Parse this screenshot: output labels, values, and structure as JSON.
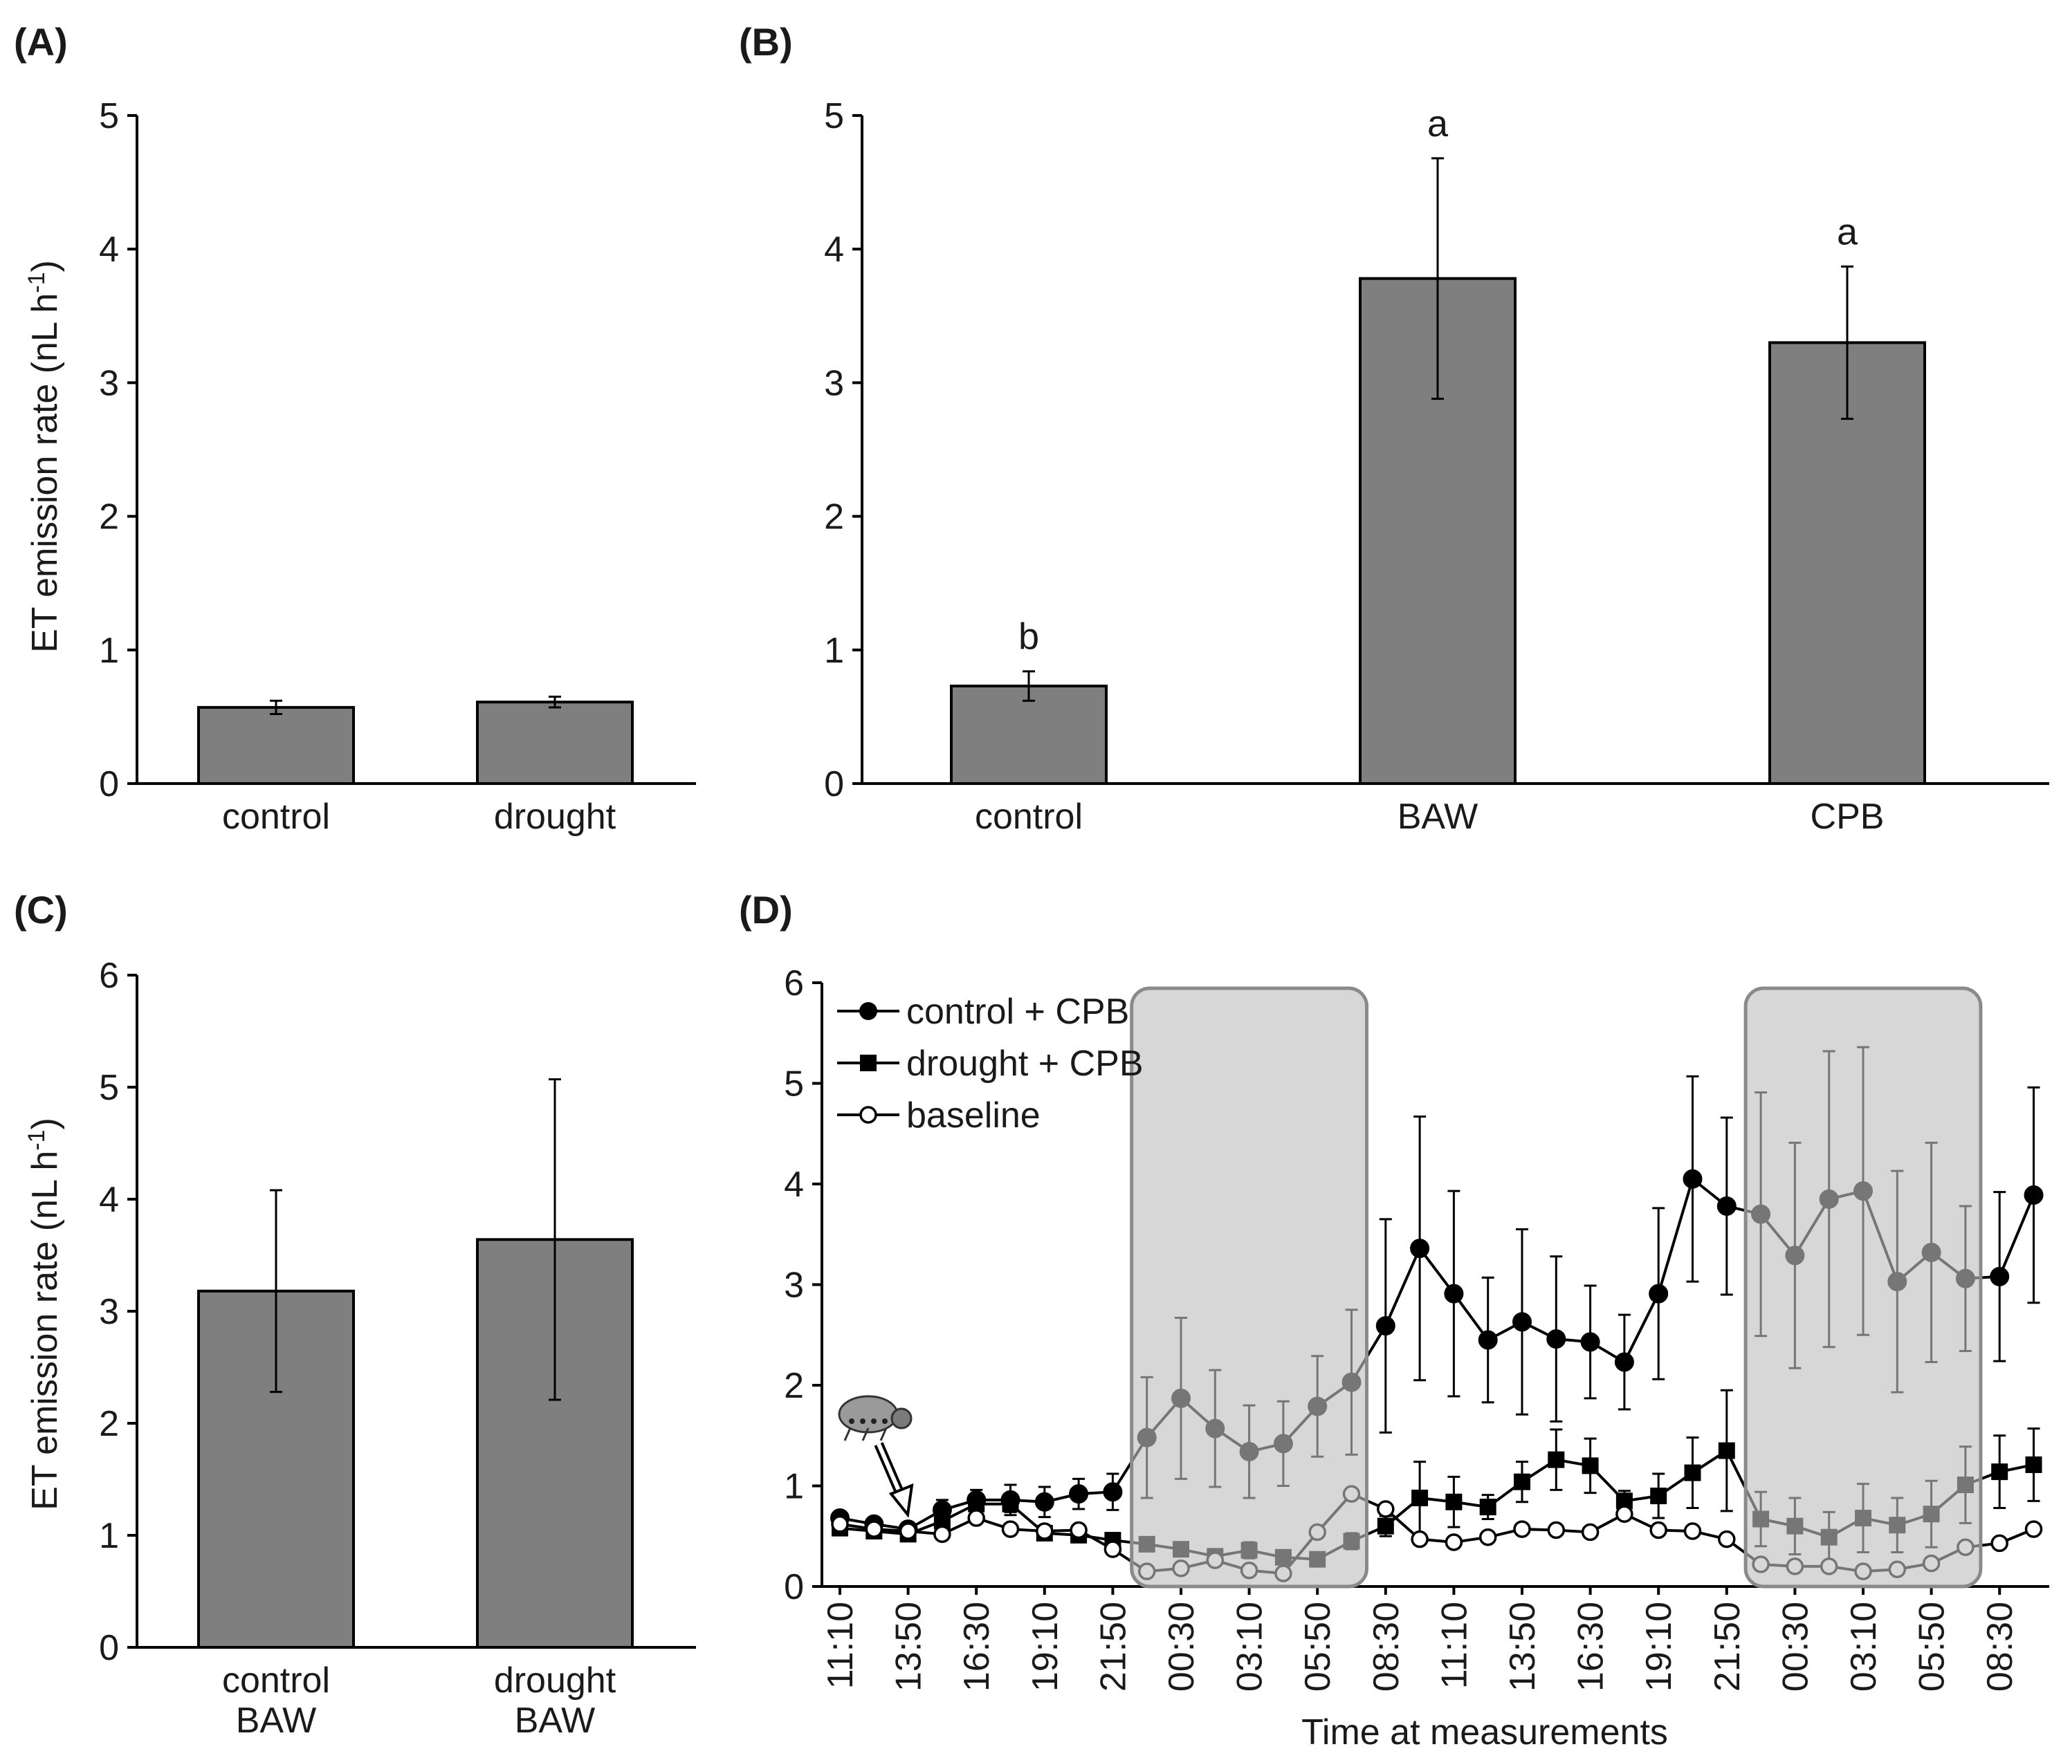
{
  "panels": {
    "A": {
      "label": "(A)"
    },
    "B": {
      "label": "(B)"
    },
    "C": {
      "label": "(C)"
    },
    "D": {
      "label": "(D)"
    }
  },
  "y_axis_title_prefix": "ET emission rate (nL h",
  "y_axis_title_sup": "-1",
  "y_axis_title_suffix": ")",
  "chart_data": [
    {
      "id": "A",
      "type": "bar",
      "title": "(A)",
      "ylabel": "ET emission rate (nL h-1)",
      "ylim": [
        0,
        5
      ],
      "yticks": [
        "0",
        "1",
        "2",
        "3",
        "4",
        "5"
      ],
      "categories": [
        "control",
        "drought"
      ],
      "values": [
        0.57,
        0.61
      ],
      "errors": [
        0.05,
        0.04
      ]
    },
    {
      "id": "B",
      "type": "bar",
      "title": "(B)",
      "ylim": [
        0,
        5
      ],
      "yticks": [
        "0",
        "1",
        "2",
        "3",
        "4",
        "5"
      ],
      "categories": [
        "control",
        "BAW",
        "CPB"
      ],
      "values": [
        0.73,
        3.78,
        3.3
      ],
      "errors": [
        0.11,
        0.9,
        0.57
      ],
      "significance": [
        "b",
        "a",
        "a"
      ]
    },
    {
      "id": "C",
      "type": "bar",
      "title": "(C)",
      "ylabel": "ET emission rate (nL h-1)",
      "ylim": [
        0,
        6
      ],
      "yticks": [
        "0",
        "1",
        "2",
        "3",
        "4",
        "5",
        "6"
      ],
      "categories": [
        [
          "control",
          "BAW"
        ],
        [
          "drought",
          "BAW"
        ]
      ],
      "values": [
        3.18,
        3.64
      ],
      "errors": [
        0.9,
        1.43
      ]
    },
    {
      "id": "D",
      "type": "line",
      "title": "(D)",
      "xlabel": "Time at measurements",
      "ylim": [
        0,
        6
      ],
      "yticks": [
        "0",
        "1",
        "2",
        "3",
        "4",
        "5",
        "6"
      ],
      "xtick_labels": [
        "11:10",
        "13:50",
        "16:30",
        "19:10",
        "21:50",
        "00:30",
        "03:10",
        "05:50",
        "08:30",
        "11:10",
        "13:50",
        "16:30",
        "19:10",
        "21:50",
        "00:30",
        "03:10",
        "05:50",
        "08:30"
      ],
      "dark_periods": [
        [
          9,
          15
        ],
        [
          27,
          33
        ]
      ],
      "series": [
        {
          "name": "control + CPB",
          "marker": "filled-circle",
          "values": [
            0.68,
            0.62,
            0.57,
            0.76,
            0.86,
            0.86,
            0.84,
            0.92,
            0.94,
            1.48,
            1.87,
            1.57,
            1.34,
            1.42,
            1.79,
            2.03,
            2.59,
            3.36,
            2.91,
            2.45,
            2.63,
            2.46,
            2.43,
            2.23,
            2.91,
            4.05,
            3.78,
            3.7,
            3.29,
            3.85,
            3.93,
            3.03,
            3.32,
            3.06,
            3.08,
            3.89
          ],
          "errors": [
            0.06,
            0.06,
            0.06,
            0.1,
            0.1,
            0.15,
            0.15,
            0.15,
            0.18,
            0.6,
            0.8,
            0.58,
            0.46,
            0.42,
            0.5,
            0.72,
            1.06,
            1.31,
            1.02,
            0.62,
            0.92,
            0.82,
            0.56,
            0.47,
            0.85,
            1.02,
            0.88,
            1.21,
            1.12,
            1.47,
            1.43,
            1.1,
            1.09,
            0.72,
            0.84,
            1.07
          ]
        },
        {
          "name": "drought + CPB",
          "marker": "filled-square",
          "values": [
            0.58,
            0.55,
            0.52,
            0.65,
            0.82,
            0.82,
            0.53,
            0.51,
            0.46,
            0.42,
            0.37,
            0.3,
            0.36,
            0.29,
            0.27,
            0.45,
            0.6,
            0.88,
            0.84,
            0.79,
            1.04,
            1.26,
            1.2,
            0.85,
            0.9,
            1.13,
            1.35,
            0.67,
            0.6,
            0.49,
            0.68,
            0.61,
            0.72,
            1.01,
            1.14,
            1.21
          ],
          "errors": [
            0.05,
            0.05,
            0.05,
            0.06,
            0.08,
            0.08,
            0.06,
            0.06,
            0.06,
            0.06,
            0.06,
            0.06,
            0.08,
            0.06,
            0.06,
            0.08,
            0.1,
            0.36,
            0.25,
            0.12,
            0.2,
            0.3,
            0.27,
            0.1,
            0.22,
            0.35,
            0.6,
            0.27,
            0.28,
            0.25,
            0.34,
            0.27,
            0.33,
            0.38,
            0.36,
            0.36
          ]
        },
        {
          "name": "baseline",
          "marker": "open-circle",
          "values": [
            0.62,
            0.57,
            0.55,
            0.52,
            0.68,
            0.57,
            0.55,
            0.56,
            0.37,
            0.15,
            0.18,
            0.26,
            0.16,
            0.13,
            0.54,
            0.92,
            0.77,
            0.47,
            0.44,
            0.49,
            0.57,
            0.56,
            0.54,
            0.72,
            0.56,
            0.55,
            0.47,
            0.22,
            0.2,
            0.2,
            0.15,
            0.17,
            0.23,
            0.39,
            0.43,
            0.57
          ],
          "errors": []
        }
      ]
    }
  ]
}
